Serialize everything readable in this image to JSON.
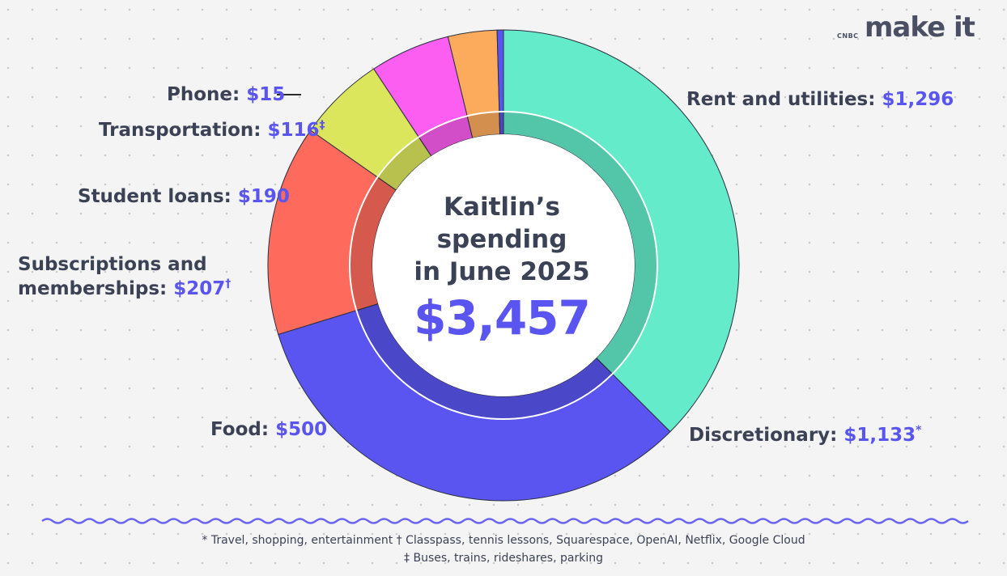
{
  "brand": {
    "network": "CNBC",
    "name": "make it"
  },
  "center": {
    "line1": "Kaitlin’s",
    "line2": "spending",
    "line3": "in June 2025",
    "total": "$3,457"
  },
  "chart_data": {
    "type": "pie",
    "title": "Kaitlin’s spending in June 2025",
    "total": 3457,
    "categories": [
      "Rent and utilities",
      "Discretionary",
      "Food",
      "Subscriptions and memberships",
      "Student loans",
      "Transportation",
      "Phone"
    ],
    "values": [
      1296,
      1133,
      500,
      207,
      190,
      116,
      15
    ],
    "value_labels": [
      "$1,296",
      "$1,133",
      "$500",
      "$207",
      "$190",
      "$116",
      "$15"
    ],
    "markers": [
      "",
      "*",
      "",
      "†",
      "",
      "‡",
      ""
    ],
    "colors": [
      "#64ebc9",
      "#5a55f0",
      "#fe6a5b",
      "#dce65c",
      "#fb5ef0",
      "#fcab5d",
      "#5a55f0"
    ]
  },
  "footnotes": {
    "line1": "* Travel, shopping, entertainment † Classpass, tennis lessons, Squarespace, OpenAI, Netflix, Google Cloud",
    "line2": "‡ Buses, trains, rideshares, parking"
  }
}
